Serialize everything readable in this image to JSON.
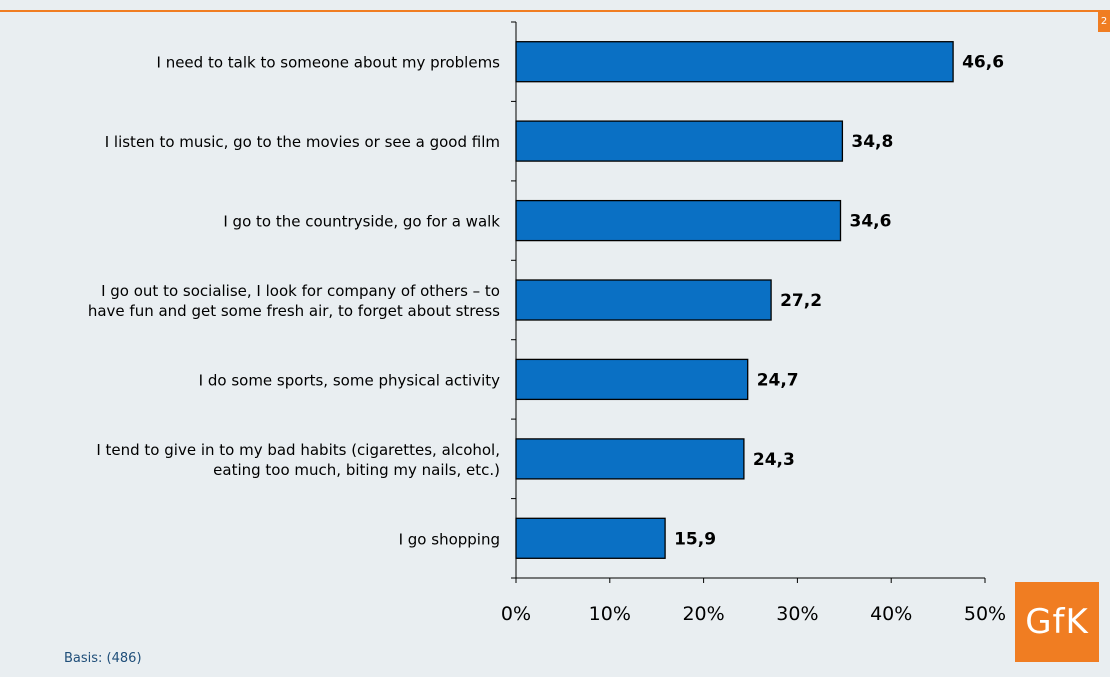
{
  "page_number": "2",
  "footnote": "Basis: (486)",
  "logo_text": "GfK",
  "colors": {
    "bar": "#0a70c4",
    "accent": "#f07d22",
    "background": "#e9eef1",
    "footnote": "#1f4e79"
  },
  "chart_data": {
    "type": "bar",
    "orientation": "horizontal",
    "categories": [
      "I need to talk to someone about my problems",
      "I listen to music, go to the movies or see a good film",
      "I go to the countryside, go for a walk",
      "I go out to socialise, I look for company of others – to have fun and get some fresh air, to forget about stress",
      "I do some sports, some physical activity",
      "I tend to give in to my bad habits (cigarettes, alcohol, eating too much, biting my nails, etc.)",
      "I go shopping"
    ],
    "category_lines": [
      [
        "I need to talk to someone about my problems"
      ],
      [
        "I listen to music, go to the movies or see a good film"
      ],
      [
        "I go to the countryside, go for a walk"
      ],
      [
        "I go out to socialise, I look for company of others – to",
        "have fun and get some fresh air, to forget about stress"
      ],
      [
        "I do some sports, some physical activity"
      ],
      [
        "I tend to give in to my bad habits (cigarettes, alcohol,",
        "eating too much, biting my nails, etc.)"
      ],
      [
        "I go shopping"
      ]
    ],
    "values": [
      46.6,
      34.8,
      34.6,
      27.2,
      24.7,
      24.3,
      15.9
    ],
    "value_labels": [
      "46,6",
      "34,8",
      "34,6",
      "27,2",
      "24,7",
      "24,3",
      "15,9"
    ],
    "xlim": [
      0,
      50
    ],
    "xticks": [
      0,
      10,
      20,
      30,
      40,
      50
    ],
    "xtick_labels": [
      "0%",
      "10%",
      "20%",
      "30%",
      "40%",
      "50%"
    ],
    "grid": false,
    "legend": "none"
  }
}
